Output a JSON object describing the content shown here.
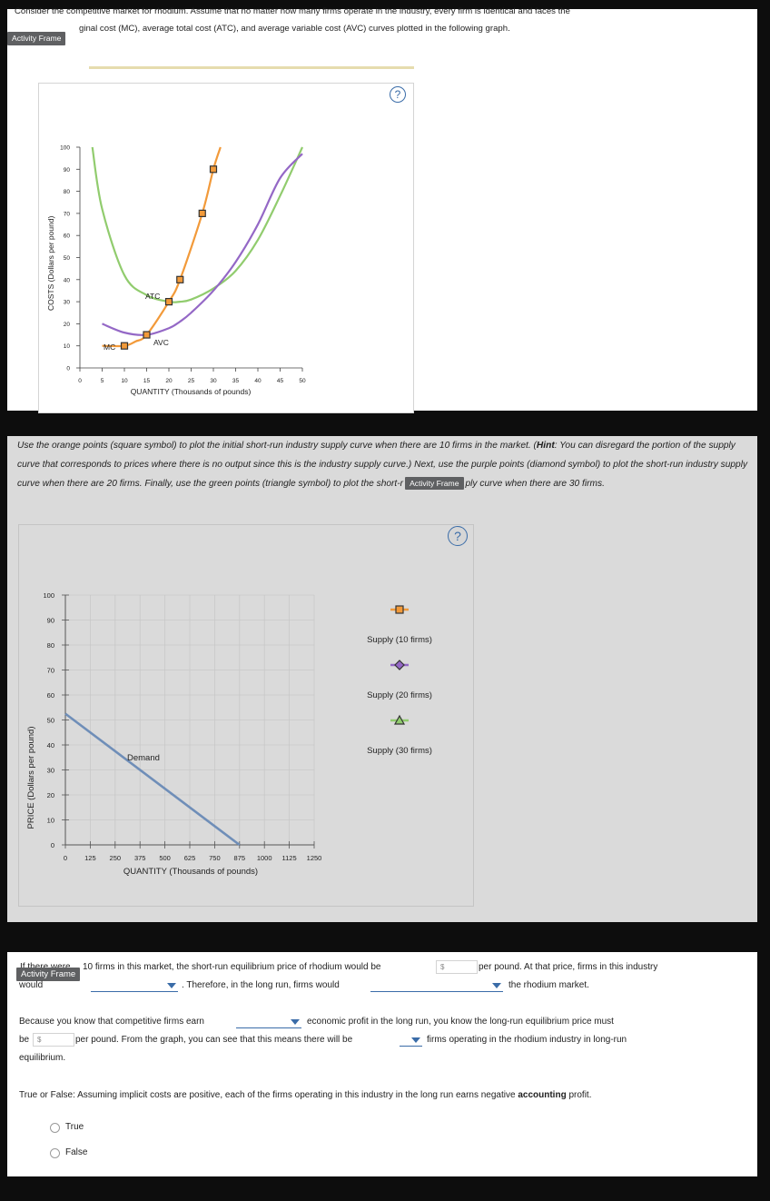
{
  "frame_label": "Activity Frame",
  "intro": {
    "line1": "Consider the competitive market for rhodium. Assume that no matter how many firms operate in the industry, every firm is identical and faces the",
    "line2": "ginal cost (MC), average total cost (ATC), and average variable cost (AVC) curves plotted in the following graph."
  },
  "help_label": "?",
  "graph1": {
    "ylabel": "COSTS (Dollars per pound)",
    "xlabel": "QUANTITY (Thousands of pounds)",
    "yticks": [
      "0",
      "10",
      "20",
      "30",
      "40",
      "50",
      "60",
      "70",
      "80",
      "90",
      "100"
    ],
    "xticks": [
      "0",
      "5",
      "10",
      "15",
      "20",
      "25",
      "30",
      "35",
      "40",
      "45",
      "50"
    ],
    "curve_labels": {
      "mc": "MC",
      "atc": "ATC",
      "avc": "AVC"
    },
    "colors": {
      "mc": "#f29a3a",
      "atc": "#91cc6e",
      "avc": "#9468c6"
    }
  },
  "instructions": "Use the orange points (square symbol) to plot the initial short-run industry supply curve when there are 10 firms in the market. (Hint: You can disregard the portion of the supply curve that corresponds to prices where there is no output since this is the industry supply curve.) Next, use the purple points (diamond symbol) to plot the short-run industry supply curve when there are 20 firms. Finally, use the green points (triangle symbol) to plot the short-run industry supply curve when there are 30 firms.",
  "instructions_parts": {
    "a": "Use the orange points (square symbol) to plot the initial short-run industry supply curve when there are 10 firms in the market. (",
    "hint": "Hint",
    "b": ": You can disregard the portion of the supply curve that corresponds to prices where there is no output since this is the industry supply curve.) Next, use the purple points (diamond symbol) to plot the short-run industry supply curve when there are 20 firms. Finally, use the green points (triangle symbol) to plot the short-r",
    "c": "ply curve when there are 30 firms."
  },
  "graph2": {
    "ylabel": "PRICE (Dollars per pound)",
    "xlabel": "QUANTITY (Thousands of pounds)",
    "yticks": [
      "0",
      "10",
      "20",
      "30",
      "40",
      "50",
      "60",
      "70",
      "80",
      "90",
      "100"
    ],
    "xticks": [
      "0",
      "125",
      "250",
      "375",
      "500",
      "625",
      "750",
      "875",
      "1000",
      "1125",
      "1250"
    ],
    "demand_label": "Demand",
    "legend": [
      {
        "label": "Supply (10 firms)",
        "color": "#f29a3a",
        "symbol": "square"
      },
      {
        "label": "Supply (20 firms)",
        "color": "#9468c6",
        "symbol": "diamond"
      },
      {
        "label": "Supply (30 firms)",
        "color": "#91cc6e",
        "symbol": "triangle"
      }
    ]
  },
  "chart_data": [
    {
      "type": "line",
      "title": "",
      "xlabel": "QUANTITY (Thousands of pounds)",
      "ylabel": "COSTS (Dollars per pound)",
      "xlim": [
        0,
        50
      ],
      "ylim": [
        0,
        100
      ],
      "grid": false,
      "series": [
        {
          "name": "MC",
          "x": [
            5,
            10,
            12.5,
            15,
            20,
            22.5,
            27.5,
            30,
            31.6
          ],
          "y": [
            10,
            10,
            12,
            15,
            30,
            40,
            70,
            90,
            100
          ]
        },
        {
          "name": "ATC",
          "x": [
            2.8,
            5,
            10,
            15,
            20,
            22.5,
            25,
            30,
            35,
            40,
            45,
            50
          ],
          "y": [
            100,
            72,
            42,
            33,
            30,
            30,
            31,
            36,
            44,
            58,
            78,
            100
          ]
        },
        {
          "name": "AVC",
          "x": [
            5,
            10,
            15,
            20,
            22.5,
            25,
            30,
            35,
            40,
            45,
            50
          ],
          "y": [
            20,
            16,
            15,
            18,
            21,
            25,
            35,
            48,
            65,
            86,
            97
          ]
        }
      ],
      "markers": {
        "name": "MC",
        "symbol": "square",
        "x": [
          10,
          15,
          20,
          22.5,
          27.5,
          30
        ],
        "y": [
          10,
          15,
          30,
          40,
          70,
          90
        ]
      }
    },
    {
      "type": "line",
      "title": "",
      "xlabel": "QUANTITY (Thousands of pounds)",
      "ylabel": "PRICE (Dollars per pound)",
      "xlim": [
        0,
        1250
      ],
      "ylim": [
        0,
        100
      ],
      "grid": true,
      "series": [
        {
          "name": "Demand",
          "x": [
            0,
            875
          ],
          "y": [
            52.5,
            0
          ]
        }
      ],
      "legend": [
        "Supply (10 firms)",
        "Supply (20 firms)",
        "Supply (30 firms)"
      ]
    }
  ],
  "q1": {
    "overlap_prefix": "If there were",
    "text1": "10 firms in this market, the short-run equilibrium price of rhodium would be",
    "currency": "$",
    "text2": "per pound. At that price, firms in this industry",
    "would": "would",
    "text3": ". Therefore, in the long run, firms would",
    "text4": "the rhodium market."
  },
  "q2": {
    "text1": "Because you know that competitive firms earn",
    "text2": "economic profit in the long run, you know the long-run equilibrium price must",
    "be": "be",
    "currency": "$",
    "text3": "per pound. From the graph, you can see that this means there will be",
    "text4": "firms operating in the rhodium industry in long-run",
    "text5": "equilibrium."
  },
  "q3": {
    "text1": "True or False: Assuming implicit costs are positive, each of the firms operating in this industry in the long run earns negative",
    "bold": "accounting",
    "text2": "profit.",
    "options": [
      "True",
      "False"
    ]
  }
}
